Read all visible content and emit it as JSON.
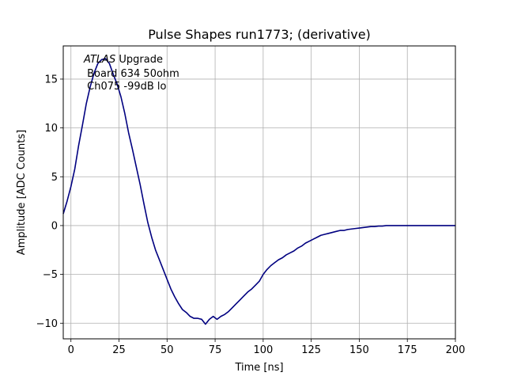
{
  "chart_data": {
    "type": "line",
    "title": "Pulse Shapes run1773; (derivative)",
    "xlabel": "Time [ns]",
    "ylabel": "Amplitude [ADC Counts]",
    "xlim": [
      -4,
      200
    ],
    "ylim": [
      -11.6,
      18.4
    ],
    "xticks": [
      0,
      25,
      50,
      75,
      100,
      125,
      150,
      175,
      200
    ],
    "xtick_labels": [
      "0",
      "25",
      "50",
      "75",
      "100",
      "125",
      "150",
      "175",
      "200"
    ],
    "yticks": [
      -10,
      -5,
      0,
      5,
      10,
      15
    ],
    "ytick_labels": [
      "−10",
      "−5",
      "0",
      "5",
      "10",
      "15"
    ],
    "grid": true,
    "line_color": "#000080",
    "annotation": {
      "line1_italic": "ATLAS",
      "line1_rest": " Upgrade",
      "line2": " Board 634 50ohm",
      "line3": " Ch075 -99dB lo"
    },
    "series": [
      {
        "name": "derivative",
        "x": [
          -4,
          -2,
          0,
          2,
          4,
          6,
          8,
          10,
          12,
          14,
          16,
          18,
          20,
          22,
          24,
          26,
          28,
          30,
          32,
          34,
          36,
          38,
          40,
          42,
          44,
          46,
          48,
          50,
          52,
          54,
          56,
          58,
          60,
          62,
          64,
          66,
          68,
          70,
          72,
          74,
          76,
          78,
          80,
          82,
          84,
          86,
          88,
          90,
          92,
          94,
          96,
          98,
          100,
          102,
          104,
          106,
          108,
          110,
          112,
          114,
          116,
          118,
          120,
          122,
          124,
          126,
          128,
          130,
          132,
          134,
          136,
          138,
          140,
          142,
          144,
          146,
          148,
          150,
          152,
          154,
          156,
          158,
          160,
          162,
          164,
          166,
          168,
          170,
          172,
          174,
          176,
          178,
          180,
          182,
          184,
          186,
          188,
          190,
          192,
          194,
          196,
          198,
          200
        ],
        "values": [
          1.2,
          2.5,
          4.0,
          5.8,
          8.2,
          10.3,
          12.5,
          14.2,
          15.6,
          16.6,
          17.0,
          17.1,
          16.6,
          15.5,
          14.5,
          13.2,
          11.5,
          9.5,
          7.8,
          6.0,
          4.2,
          2.2,
          0.3,
          -1.2,
          -2.5,
          -3.5,
          -4.5,
          -5.5,
          -6.5,
          -7.3,
          -8.0,
          -8.6,
          -8.9,
          -9.3,
          -9.5,
          -9.5,
          -9.6,
          -10.1,
          -9.6,
          -9.3,
          -9.6,
          -9.3,
          -9.1,
          -8.8,
          -8.4,
          -8.0,
          -7.6,
          -7.2,
          -6.8,
          -6.5,
          -6.1,
          -5.7,
          -5.0,
          -4.5,
          -4.1,
          -3.8,
          -3.5,
          -3.3,
          -3.0,
          -2.8,
          -2.6,
          -2.3,
          -2.1,
          -1.8,
          -1.6,
          -1.4,
          -1.2,
          -1.0,
          -0.9,
          -0.8,
          -0.7,
          -0.6,
          -0.5,
          -0.5,
          -0.4,
          -0.35,
          -0.3,
          -0.25,
          -0.2,
          -0.15,
          -0.1,
          -0.1,
          -0.05,
          -0.05,
          0.0,
          0.0,
          0.0,
          0.0,
          0.0,
          0.0,
          0.0,
          0.0,
          0.0,
          0.0,
          0.0,
          0.0,
          0.0,
          0.0,
          0.0,
          0.0,
          0.0,
          0.0,
          0.0
        ]
      }
    ]
  }
}
